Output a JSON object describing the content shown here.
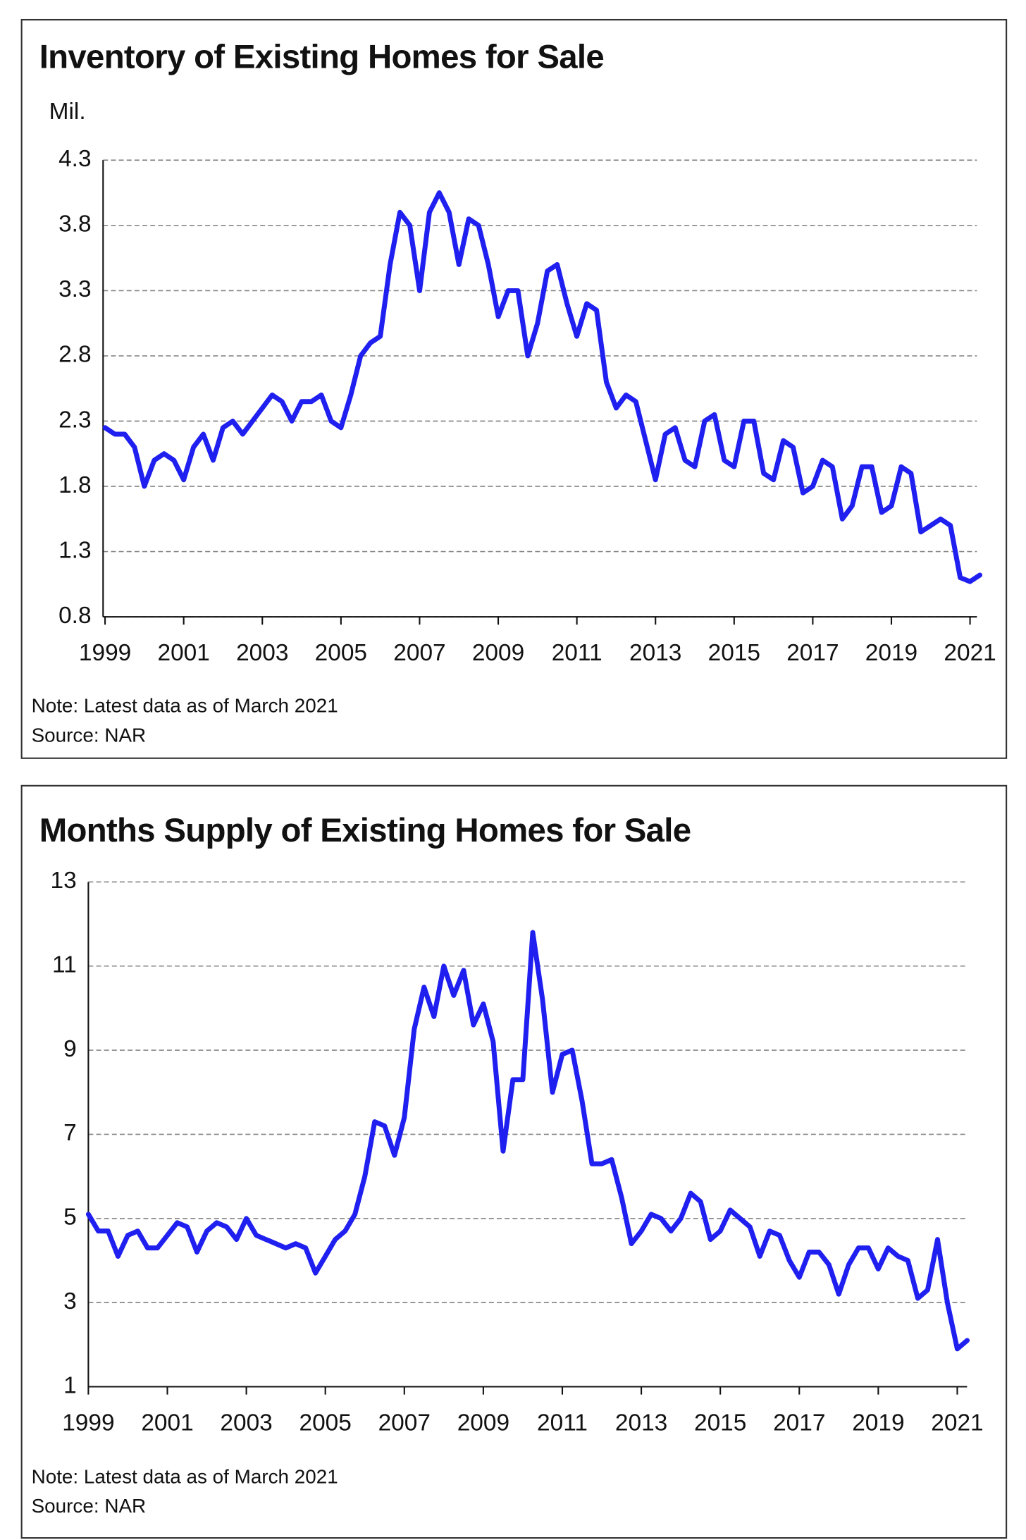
{
  "chart_data": [
    {
      "type": "line",
      "title": "Inventory of Existing Homes for Sale",
      "y_label": "Mil.",
      "note": "Note: Latest data as of March 2021",
      "source": "Source: NAR",
      "x": [
        1999,
        1999.25,
        1999.5,
        1999.75,
        2000,
        2000.25,
        2000.5,
        2000.75,
        2001,
        2001.25,
        2001.5,
        2001.75,
        2002,
        2002.25,
        2002.5,
        2002.75,
        2003,
        2003.25,
        2003.5,
        2003.75,
        2004,
        2004.25,
        2004.5,
        2004.75,
        2005,
        2005.25,
        2005.5,
        2005.75,
        2006,
        2006.25,
        2006.5,
        2006.75,
        2007,
        2007.25,
        2007.5,
        2007.75,
        2008,
        2008.25,
        2008.5,
        2008.75,
        2009,
        2009.25,
        2009.5,
        2009.75,
        2010,
        2010.25,
        2010.5,
        2010.75,
        2011,
        2011.25,
        2011.5,
        2011.75,
        2012,
        2012.25,
        2012.5,
        2012.75,
        2013,
        2013.25,
        2013.5,
        2013.75,
        2014,
        2014.25,
        2014.5,
        2014.75,
        2015,
        2015.25,
        2015.5,
        2015.75,
        2016,
        2016.25,
        2016.5,
        2016.75,
        2017,
        2017.25,
        2017.5,
        2017.75,
        2018,
        2018.25,
        2018.5,
        2018.75,
        2019,
        2019.25,
        2019.5,
        2019.75,
        2020,
        2020.25,
        2020.5,
        2020.75,
        2021,
        2021.25
      ],
      "series": [
        {
          "color": "#1f1ff0",
          "values": [
            2.25,
            2.2,
            2.2,
            2.1,
            1.8,
            2.0,
            2.05,
            2.0,
            1.85,
            2.1,
            2.2,
            2.0,
            2.25,
            2.3,
            2.2,
            2.3,
            2.4,
            2.5,
            2.45,
            2.3,
            2.45,
            2.45,
            2.5,
            2.3,
            2.25,
            2.5,
            2.8,
            2.9,
            2.95,
            3.5,
            3.9,
            3.8,
            3.3,
            3.9,
            4.05,
            3.9,
            3.5,
            3.85,
            3.8,
            3.5,
            3.1,
            3.3,
            3.3,
            2.8,
            3.05,
            3.45,
            3.5,
            3.2,
            2.95,
            3.2,
            3.15,
            2.6,
            2.4,
            2.5,
            2.45,
            2.15,
            1.85,
            2.2,
            2.25,
            2.0,
            1.95,
            2.3,
            2.35,
            2.0,
            1.95,
            2.3,
            2.3,
            1.9,
            1.85,
            2.15,
            2.1,
            1.75,
            1.8,
            2.0,
            1.95,
            1.55,
            1.65,
            1.95,
            1.95,
            1.6,
            1.65,
            1.95,
            1.9,
            1.45,
            1.5,
            1.55,
            1.5,
            1.1,
            1.07,
            1.12
          ]
        }
      ],
      "xlim": [
        1999,
        2021.2
      ],
      "xticks": [
        1999,
        2001,
        2003,
        2005,
        2007,
        2009,
        2011,
        2013,
        2015,
        2017,
        2019,
        2021
      ],
      "ylim": [
        0.8,
        4.3
      ],
      "yticks": [
        0.8,
        1.3,
        1.8,
        2.3,
        2.8,
        3.3,
        3.8,
        4.3
      ],
      "grid": true
    },
    {
      "type": "line",
      "title": "Months Supply of Existing Homes for Sale",
      "note": "Note: Latest data as of March 2021",
      "source": "Source: NAR",
      "x": [
        1999,
        1999.25,
        1999.5,
        1999.75,
        2000,
        2000.25,
        2000.5,
        2000.75,
        2001,
        2001.25,
        2001.5,
        2001.75,
        2002,
        2002.25,
        2002.5,
        2002.75,
        2003,
        2003.25,
        2003.5,
        2003.75,
        2004,
        2004.25,
        2004.5,
        2004.75,
        2005,
        2005.25,
        2005.5,
        2005.75,
        2006,
        2006.25,
        2006.5,
        2006.75,
        2007,
        2007.25,
        2007.5,
        2007.75,
        2008,
        2008.25,
        2008.5,
        2008.75,
        2009,
        2009.25,
        2009.5,
        2009.75,
        2010,
        2010.25,
        2010.5,
        2010.75,
        2011,
        2011.25,
        2011.5,
        2011.75,
        2012,
        2012.25,
        2012.5,
        2012.75,
        2013,
        2013.25,
        2013.5,
        2013.75,
        2014,
        2014.25,
        2014.5,
        2014.75,
        2015,
        2015.25,
        2015.5,
        2015.75,
        2016,
        2016.25,
        2016.5,
        2016.75,
        2017,
        2017.25,
        2017.5,
        2017.75,
        2018,
        2018.25,
        2018.5,
        2018.75,
        2019,
        2019.25,
        2019.5,
        2019.75,
        2020,
        2020.25,
        2020.5,
        2020.75,
        2021,
        2021.25
      ],
      "series": [
        {
          "color": "#1f1ff0",
          "values": [
            5.1,
            4.7,
            4.7,
            4.1,
            4.6,
            4.7,
            4.3,
            4.3,
            4.6,
            4.9,
            4.8,
            4.2,
            4.7,
            4.9,
            4.8,
            4.5,
            5.0,
            4.6,
            4.5,
            4.4,
            4.3,
            4.4,
            4.3,
            3.7,
            4.1,
            4.5,
            4.7,
            5.1,
            6.0,
            7.3,
            7.2,
            6.5,
            7.4,
            9.5,
            10.5,
            9.8,
            11.0,
            10.3,
            10.9,
            9.6,
            10.1,
            9.2,
            6.6,
            8.3,
            8.3,
            11.8,
            10.2,
            8.0,
            8.9,
            9.0,
            7.8,
            6.3,
            6.3,
            6.4,
            5.5,
            4.4,
            4.7,
            5.1,
            5.0,
            4.7,
            5.0,
            5.6,
            5.4,
            4.5,
            4.7,
            5.2,
            5.0,
            4.8,
            4.1,
            4.7,
            4.6,
            4.0,
            3.6,
            4.2,
            4.2,
            3.9,
            3.2,
            3.9,
            4.3,
            4.3,
            3.8,
            4.3,
            4.1,
            4.0,
            3.1,
            3.3,
            4.5,
            3.0,
            1.9,
            2.1
          ]
        }
      ],
      "xlim": [
        1999,
        2021.2
      ],
      "xticks": [
        1999,
        2001,
        2003,
        2005,
        2007,
        2009,
        2011,
        2013,
        2015,
        2017,
        2019,
        2021
      ],
      "ylim": [
        1,
        13
      ],
      "yticks": [
        1,
        3,
        5,
        7,
        9,
        11,
        13
      ],
      "grid": true
    }
  ]
}
